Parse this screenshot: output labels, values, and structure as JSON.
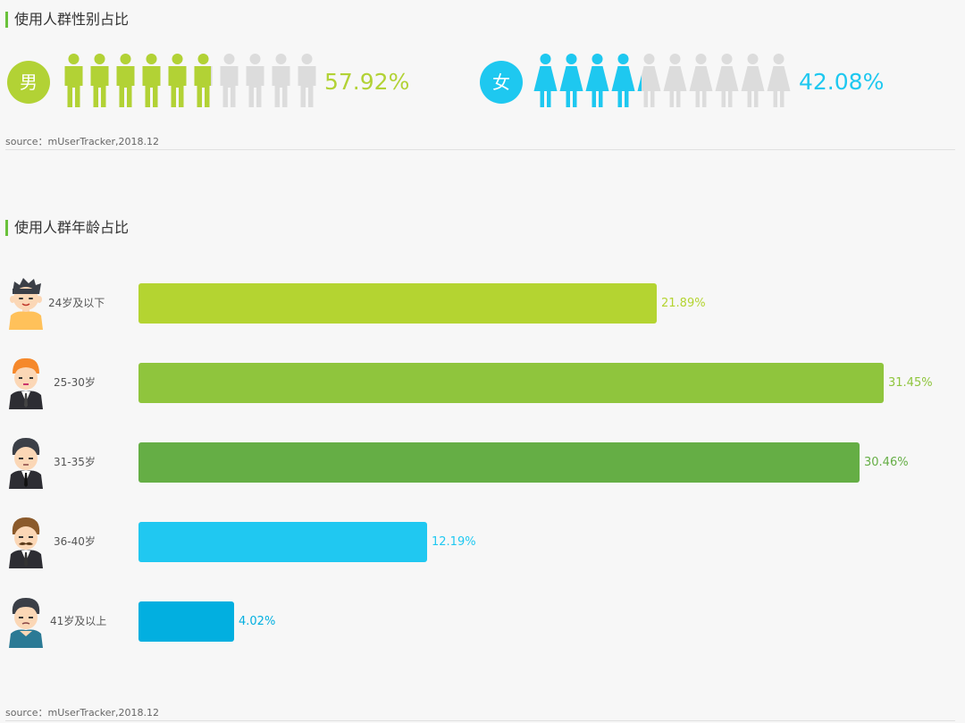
{
  "gender": {
    "title": "使用人群性别占比",
    "source": "source：mUserTracker,2018.12",
    "male": {
      "label": "男",
      "value": 57.92,
      "value_text": "57.92%",
      "color": "#b2d235",
      "gray": "#dcdcdc"
    },
    "female": {
      "label": "女",
      "value": 42.08,
      "value_text": "42.08%",
      "color": "#1ec8f0",
      "gray": "#dcdcdc"
    }
  },
  "age": {
    "title": "使用人群年龄占比",
    "source": "source：mUserTracker,2018.12"
  },
  "chart_data": {
    "type": "bar",
    "orientation": "horizontal",
    "categories": [
      "24岁及以下",
      "25-30岁",
      "31-35岁",
      "36-40岁",
      "41岁及以上"
    ],
    "values": [
      21.89,
      31.45,
      30.46,
      12.19,
      4.02
    ],
    "value_labels": [
      "21.89%",
      "31.45%",
      "30.46%",
      "12.19%",
      "4.02%"
    ],
    "colors": [
      "#b4d431",
      "#8fc53d",
      "#65ae45",
      "#20c8f1",
      "#02afe0"
    ],
    "xlim": [
      0,
      34.9
    ],
    "grid": false,
    "legend": "none"
  }
}
